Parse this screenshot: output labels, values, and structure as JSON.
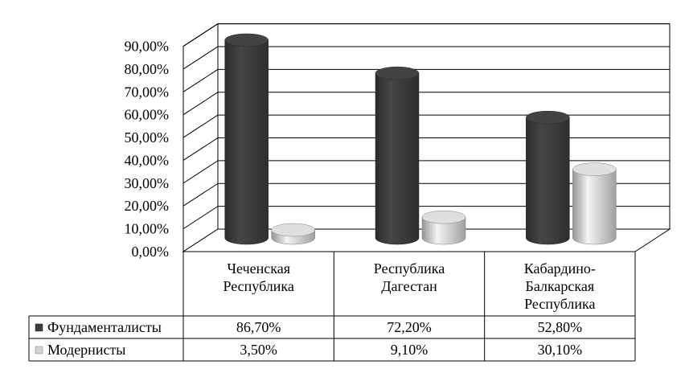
{
  "chart_data": {
    "type": "bar",
    "style": "3d-cylinder",
    "categories": [
      [
        "Чеченская",
        "Республика"
      ],
      [
        "Республика",
        "Дагестан"
      ],
      [
        "Кабардино-",
        "Балкарская",
        "Республика"
      ]
    ],
    "series": [
      {
        "name": "Фундаменталисты",
        "values": [
          86.7,
          72.2,
          52.8
        ],
        "labels": [
          "86,70%",
          "72,20%",
          "52,80%"
        ],
        "color": "#3d3d3d"
      },
      {
        "name": "Модернисты",
        "values": [
          3.5,
          9.1,
          30.1
        ],
        "labels": [
          "3,50%",
          "9,10%",
          "30,10%"
        ],
        "color": "#d4d4d4"
      }
    ],
    "y_ticks": [
      "0,00%",
      "10,00%",
      "20,00%",
      "30,00%",
      "40,00%",
      "50,00%",
      "60,00%",
      "70,00%",
      "80,00%",
      "90,00%"
    ],
    "ylim": [
      0,
      90
    ],
    "grid": true,
    "legend": "data-table"
  }
}
